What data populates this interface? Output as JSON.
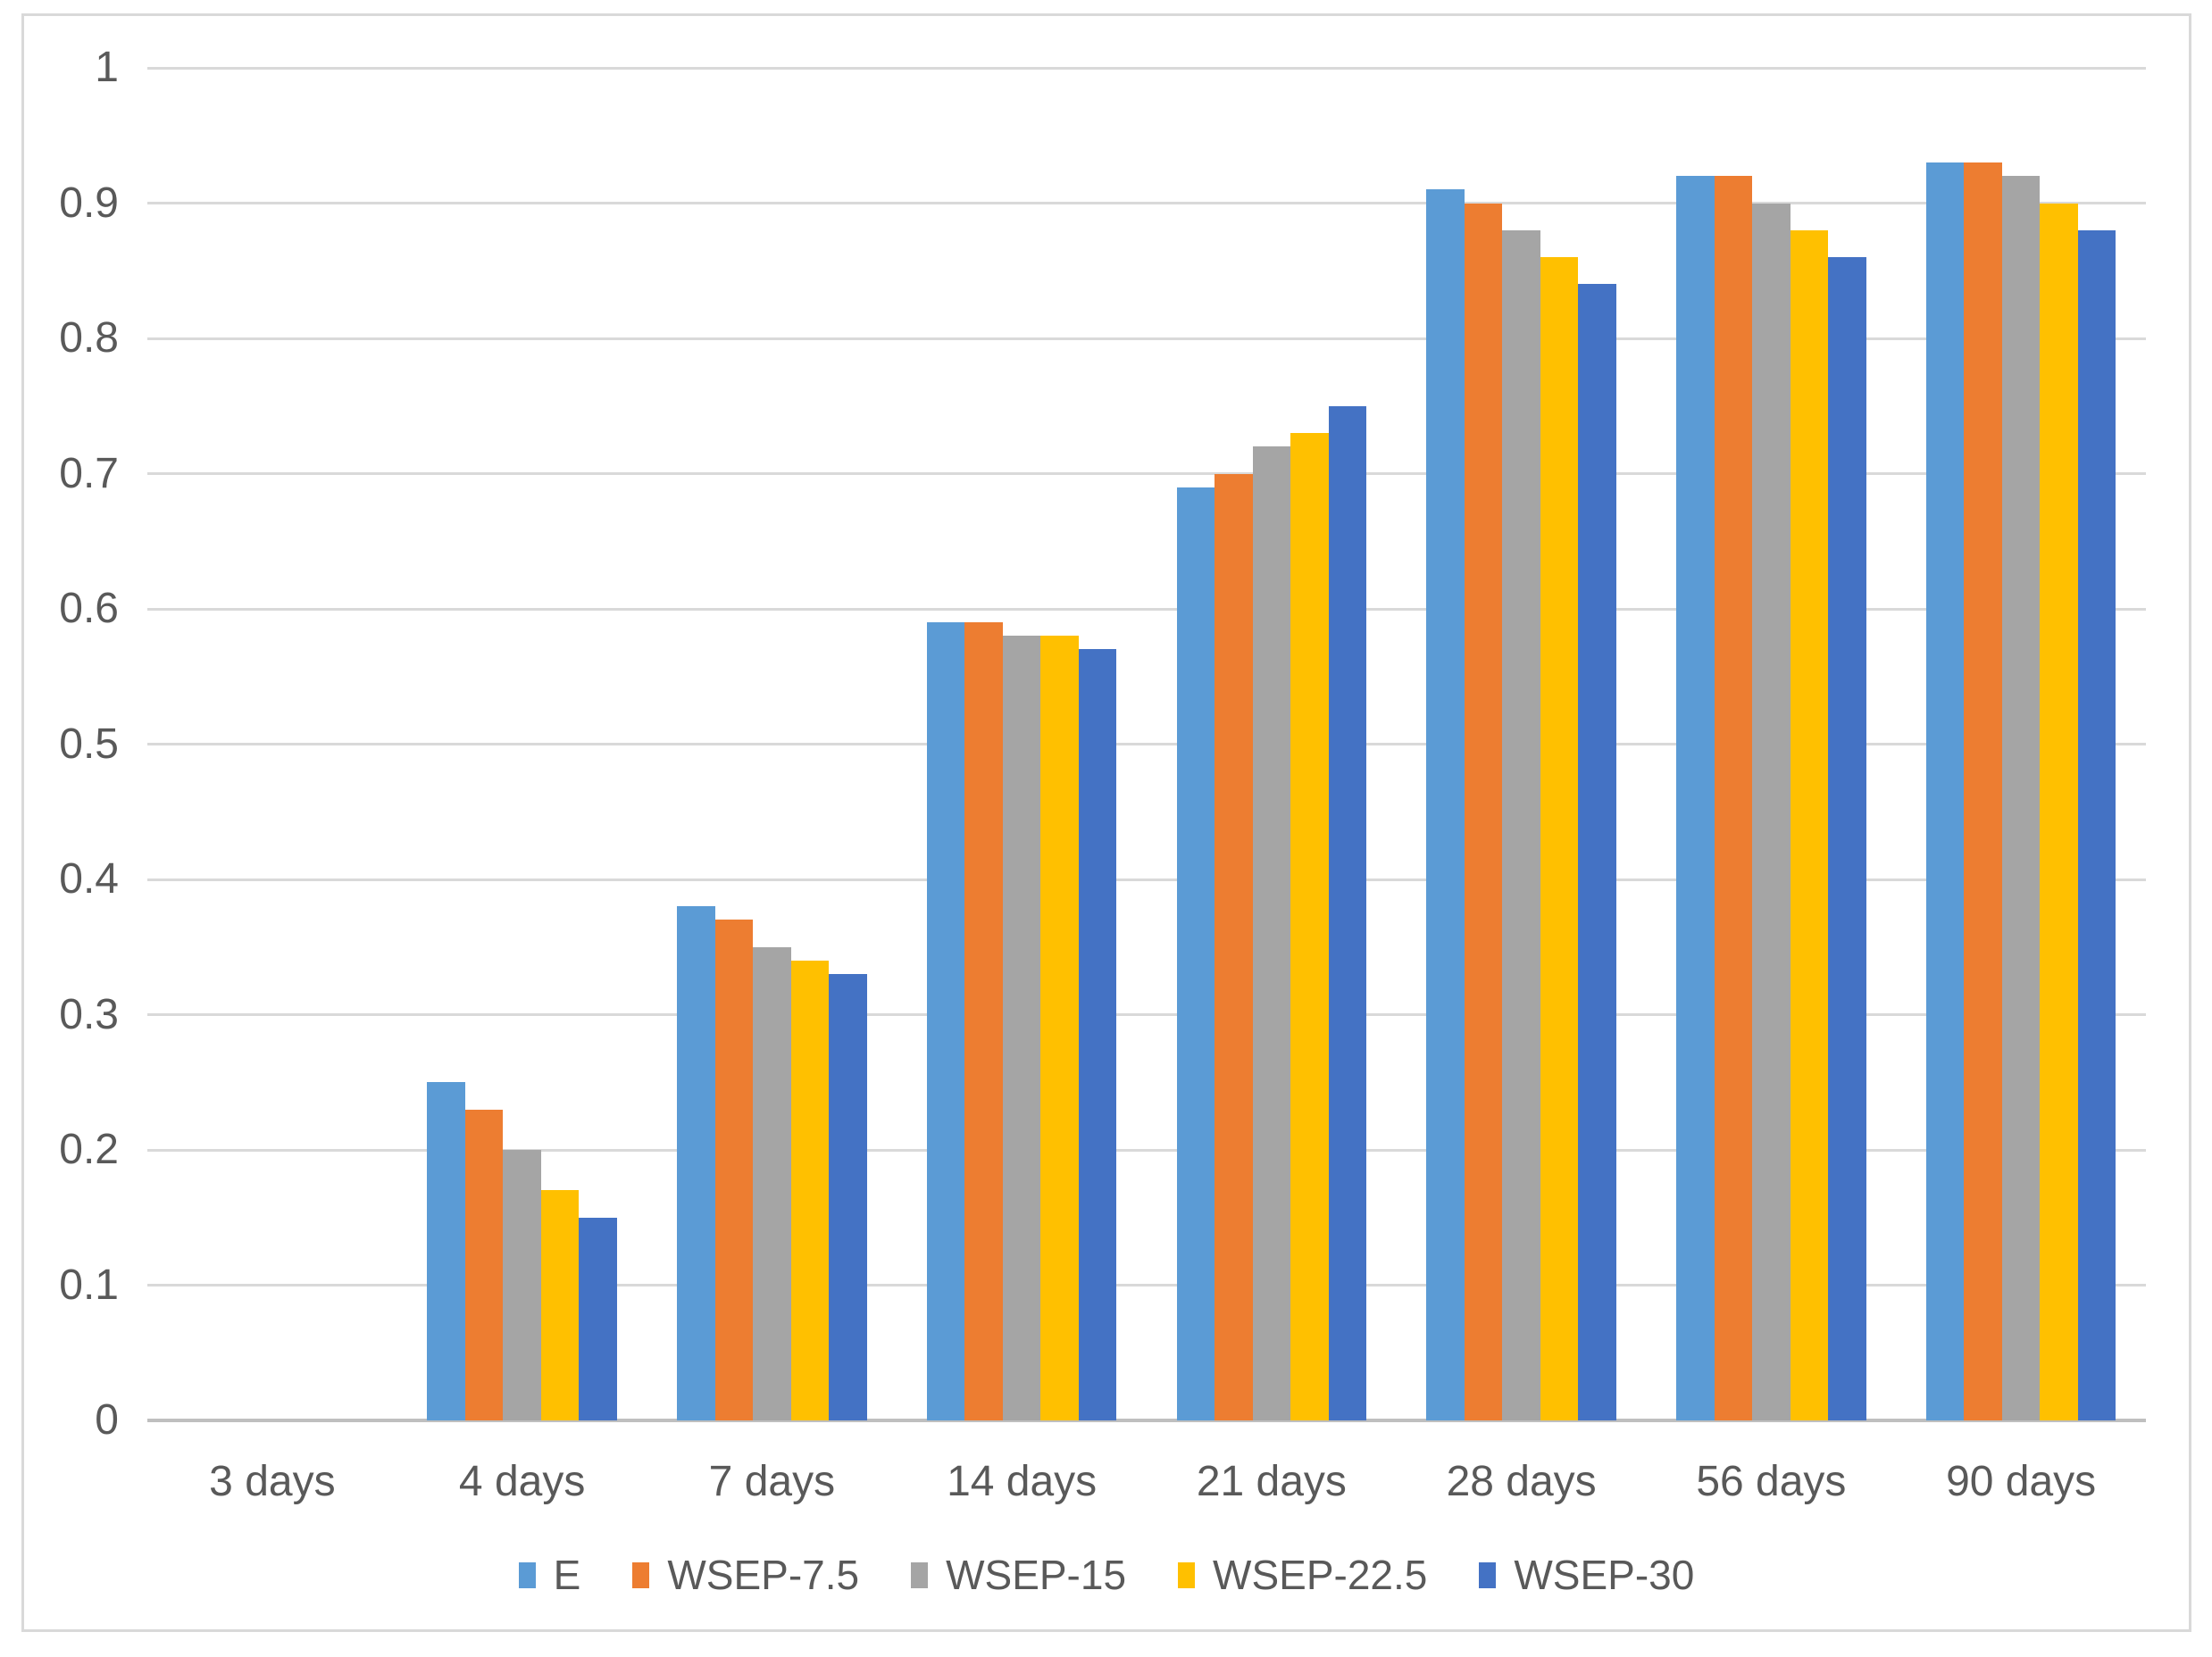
{
  "chart_data": {
    "type": "bar",
    "title": "",
    "categories": [
      "3 days",
      "4 days",
      "7 days",
      "14 days",
      "21 days",
      "28 days",
      "56 days",
      "90 days"
    ],
    "series": [
      {
        "name": "E",
        "color": "#5B9BD5",
        "values": [
          0,
          0.25,
          0.38,
          0.59,
          0.69,
          0.91,
          0.92,
          0.93
        ]
      },
      {
        "name": "WSEP-7.5",
        "color": "#ED7D31",
        "values": [
          0,
          0.23,
          0.37,
          0.59,
          0.7,
          0.9,
          0.92,
          0.93
        ]
      },
      {
        "name": "WSEP-15",
        "color": "#A5A5A5",
        "values": [
          0,
          0.2,
          0.35,
          0.58,
          0.72,
          0.88,
          0.9,
          0.92
        ]
      },
      {
        "name": "WSEP-22.5",
        "color": "#FFC000",
        "values": [
          0,
          0.17,
          0.34,
          0.58,
          0.73,
          0.86,
          0.88,
          0.9
        ]
      },
      {
        "name": "WSEP-30",
        "color": "#4472C4",
        "values": [
          0,
          0.15,
          0.33,
          0.57,
          0.75,
          0.84,
          0.86,
          0.88
        ]
      }
    ],
    "y_axis": {
      "min": 0,
      "max": 1,
      "step": 0.1,
      "tick_labels": [
        "0",
        "0.1",
        "0.2",
        "0.3",
        "0.4",
        "0.5",
        "0.6",
        "0.7",
        "0.8",
        "0.9",
        "1"
      ]
    },
    "x_axis_label": "",
    "grid": true,
    "legend_position": "bottom",
    "style_colors": {
      "gridline": "#D9D9D9",
      "axis_line": "#BFBFBF",
      "frame_border": "#D9D9D9",
      "text": "#595959",
      "background": "#FFFFFF"
    }
  }
}
